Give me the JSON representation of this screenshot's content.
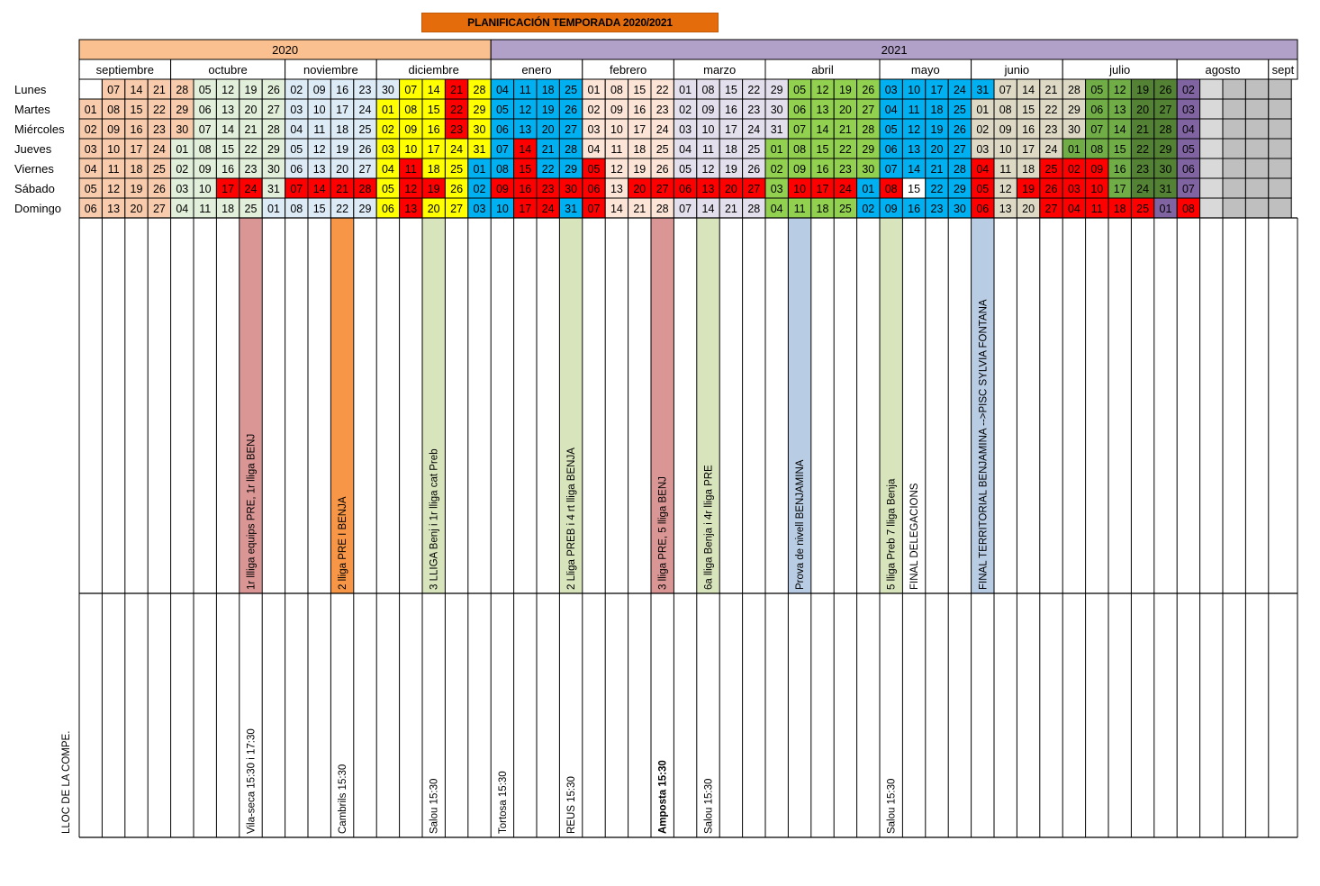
{
  "title": "PLANIFICACIÓN TEMPORADA 2020/2021",
  "years": [
    {
      "label": "2020",
      "from": 0,
      "to": 18,
      "color": "#fac090"
    },
    {
      "label": "2021",
      "from": 18,
      "to": 53,
      "color": "#b1a0c7"
    }
  ],
  "months": [
    {
      "label": "septiembre",
      "from": 0,
      "to": 4
    },
    {
      "label": "octubre",
      "from": 4,
      "to": 9
    },
    {
      "label": "noviembre",
      "from": 9,
      "to": 13
    },
    {
      "label": "diciembre",
      "from": 13,
      "to": 18
    },
    {
      "label": "enero",
      "from": 18,
      "to": 22
    },
    {
      "label": "febrero",
      "from": 22,
      "to": 26
    },
    {
      "label": "marzo",
      "from": 26,
      "to": 30
    },
    {
      "label": "abril",
      "from": 30,
      "to": 35
    },
    {
      "label": "mayo",
      "from": 35,
      "to": 39
    },
    {
      "label": "junio",
      "from": 39,
      "to": 43
    },
    {
      "label": "julio",
      "from": 43,
      "to": 48
    },
    {
      "label": "agosto",
      "from": 48,
      "to": 52
    },
    {
      "label": "sept",
      "from": 52,
      "to": 53
    }
  ],
  "day_labels": [
    "Lunes",
    "Martes",
    "Miércoles",
    "Jueves",
    "Viernes",
    "Sábado",
    "Domingo"
  ],
  "colors": {
    "sep": "#f8cbad",
    "oct": "#e2efda",
    "nov": "#ddebf7",
    "dec": "#ffff00",
    "jan": "#00b0f0",
    "feb": "#fce4d6",
    "mar": "#e4dfec",
    "apr": "#92d050",
    "may": "#00b0f0",
    "jun": "#ddd9c4",
    "jul": "#70ad47",
    "jul2": "#548235",
    "aug": "#8064a2",
    "red": "#ff0000",
    "grey": "#bfbfbf",
    "white": "#ffffff",
    "lightgrey": "#d9d9d9"
  },
  "weeks": [
    {
      "days": [
        "",
        "01",
        "02",
        "03",
        "04",
        "05",
        "06"
      ],
      "colors": [
        "white",
        "sep",
        "sep",
        "sep",
        "sep",
        "sep",
        "sep"
      ]
    },
    {
      "days": [
        "07",
        "08",
        "09",
        "10",
        "11",
        "12",
        "13"
      ],
      "colors": [
        "sep",
        "sep",
        "sep",
        "sep",
        "sep",
        "sep",
        "sep"
      ]
    },
    {
      "days": [
        "14",
        "15",
        "16",
        "17",
        "18",
        "19",
        "20"
      ],
      "colors": [
        "sep",
        "sep",
        "sep",
        "sep",
        "sep",
        "sep",
        "sep"
      ]
    },
    {
      "days": [
        "21",
        "22",
        "23",
        "24",
        "25",
        "26",
        "27"
      ],
      "colors": [
        "sep",
        "sep",
        "sep",
        "sep",
        "sep",
        "sep",
        "sep"
      ]
    },
    {
      "days": [
        "28",
        "29",
        "30",
        "01",
        "02",
        "03",
        "04"
      ],
      "colors": [
        "sep",
        "sep",
        "sep",
        "oct",
        "oct",
        "oct",
        "oct"
      ]
    },
    {
      "days": [
        "05",
        "06",
        "07",
        "08",
        "09",
        "10",
        "11"
      ],
      "colors": [
        "oct",
        "oct",
        "oct",
        "oct",
        "oct",
        "oct",
        "oct"
      ]
    },
    {
      "days": [
        "12",
        "13",
        "14",
        "15",
        "16",
        "17",
        "18"
      ],
      "colors": [
        "oct",
        "oct",
        "oct",
        "oct",
        "oct",
        "red",
        "oct"
      ]
    },
    {
      "days": [
        "19",
        "20",
        "21",
        "22",
        "23",
        "24",
        "25"
      ],
      "colors": [
        "oct",
        "oct",
        "oct",
        "oct",
        "oct",
        "red",
        "oct"
      ]
    },
    {
      "days": [
        "26",
        "27",
        "28",
        "29",
        "30",
        "31",
        "01"
      ],
      "colors": [
        "oct",
        "oct",
        "oct",
        "oct",
        "oct",
        "oct",
        "nov"
      ]
    },
    {
      "days": [
        "02",
        "03",
        "04",
        "05",
        "06",
        "07",
        "08"
      ],
      "colors": [
        "nov",
        "nov",
        "nov",
        "nov",
        "nov",
        "red",
        "nov"
      ]
    },
    {
      "days": [
        "09",
        "10",
        "11",
        "12",
        "13",
        "14",
        "15"
      ],
      "colors": [
        "nov",
        "nov",
        "nov",
        "nov",
        "nov",
        "red",
        "nov"
      ]
    },
    {
      "days": [
        "16",
        "17",
        "18",
        "19",
        "20",
        "21",
        "22"
      ],
      "colors": [
        "nov",
        "nov",
        "nov",
        "nov",
        "nov",
        "red",
        "nov"
      ]
    },
    {
      "days": [
        "23",
        "24",
        "25",
        "26",
        "27",
        "28",
        "29"
      ],
      "colors": [
        "nov",
        "nov",
        "nov",
        "nov",
        "nov",
        "red",
        "nov"
      ]
    },
    {
      "days": [
        "30",
        "01",
        "02",
        "03",
        "04",
        "05",
        "06"
      ],
      "colors": [
        "nov",
        "dec",
        "dec",
        "dec",
        "dec",
        "dec",
        "dec"
      ]
    },
    {
      "days": [
        "07",
        "08",
        "09",
        "10",
        "11",
        "12",
        "13"
      ],
      "colors": [
        "dec",
        "dec",
        "dec",
        "dec",
        "red",
        "red",
        "red"
      ]
    },
    {
      "days": [
        "14",
        "15",
        "16",
        "17",
        "18",
        "19",
        "20"
      ],
      "colors": [
        "dec",
        "dec",
        "dec",
        "dec",
        "dec",
        "red",
        "dec"
      ]
    },
    {
      "days": [
        "21",
        "22",
        "23",
        "24",
        "25",
        "26",
        "27"
      ],
      "colors": [
        "red",
        "red",
        "red",
        "dec",
        "dec",
        "dec",
        "dec"
      ]
    },
    {
      "days": [
        "28",
        "29",
        "30",
        "31",
        "01",
        "02",
        "03"
      ],
      "colors": [
        "dec",
        "dec",
        "dec",
        "dec",
        "jan",
        "jan",
        "jan"
      ]
    },
    {
      "days": [
        "04",
        "05",
        "06",
        "07",
        "08",
        "09",
        "10"
      ],
      "colors": [
        "jan",
        "jan",
        "jan",
        "jan",
        "jan",
        "red",
        "jan"
      ]
    },
    {
      "days": [
        "11",
        "12",
        "13",
        "14",
        "15",
        "16",
        "17"
      ],
      "colors": [
        "jan",
        "jan",
        "jan",
        "red",
        "red",
        "red",
        "red"
      ]
    },
    {
      "days": [
        "18",
        "19",
        "20",
        "21",
        "22",
        "23",
        "24"
      ],
      "colors": [
        "jan",
        "jan",
        "jan",
        "jan",
        "jan",
        "red",
        "red"
      ]
    },
    {
      "days": [
        "25",
        "26",
        "27",
        "28",
        "29",
        "30",
        "31"
      ],
      "colors": [
        "jan",
        "jan",
        "jan",
        "jan",
        "jan",
        "red",
        "jan"
      ]
    },
    {
      "days": [
        "01",
        "02",
        "03",
        "04",
        "05",
        "06",
        "07"
      ],
      "colors": [
        "feb",
        "feb",
        "feb",
        "feb",
        "red",
        "red",
        "red"
      ]
    },
    {
      "days": [
        "08",
        "09",
        "10",
        "11",
        "12",
        "13",
        "14"
      ],
      "colors": [
        "feb",
        "feb",
        "feb",
        "feb",
        "feb",
        "feb",
        "feb"
      ]
    },
    {
      "days": [
        "15",
        "16",
        "17",
        "18",
        "19",
        "20",
        "21"
      ],
      "colors": [
        "feb",
        "feb",
        "feb",
        "feb",
        "feb",
        "red",
        "feb"
      ]
    },
    {
      "days": [
        "22",
        "23",
        "24",
        "25",
        "26",
        "27",
        "28"
      ],
      "colors": [
        "feb",
        "feb",
        "feb",
        "feb",
        "feb",
        "red",
        "feb"
      ]
    },
    {
      "days": [
        "01",
        "02",
        "03",
        "04",
        "05",
        "06",
        "07"
      ],
      "colors": [
        "mar",
        "mar",
        "mar",
        "mar",
        "mar",
        "red",
        "mar"
      ]
    },
    {
      "days": [
        "08",
        "09",
        "10",
        "11",
        "12",
        "13",
        "14"
      ],
      "colors": [
        "mar",
        "mar",
        "mar",
        "mar",
        "mar",
        "red",
        "mar"
      ]
    },
    {
      "days": [
        "15",
        "16",
        "17",
        "18",
        "19",
        "20",
        "21"
      ],
      "colors": [
        "mar",
        "mar",
        "mar",
        "mar",
        "mar",
        "red",
        "mar"
      ]
    },
    {
      "days": [
        "22",
        "23",
        "24",
        "25",
        "26",
        "27",
        "28"
      ],
      "colors": [
        "mar",
        "mar",
        "mar",
        "mar",
        "mar",
        "red",
        "mar"
      ]
    },
    {
      "days": [
        "29",
        "30",
        "31",
        "01",
        "02",
        "03",
        "04"
      ],
      "colors": [
        "mar",
        "mar",
        "mar",
        "apr",
        "apr",
        "apr",
        "apr"
      ]
    },
    {
      "days": [
        "05",
        "06",
        "07",
        "08",
        "09",
        "10",
        "11"
      ],
      "colors": [
        "apr",
        "apr",
        "apr",
        "apr",
        "apr",
        "red",
        "apr"
      ]
    },
    {
      "days": [
        "12",
        "13",
        "14",
        "15",
        "16",
        "17",
        "18"
      ],
      "colors": [
        "apr",
        "apr",
        "apr",
        "apr",
        "apr",
        "red",
        "apr"
      ]
    },
    {
      "days": [
        "19",
        "20",
        "21",
        "22",
        "23",
        "24",
        "25"
      ],
      "colors": [
        "apr",
        "apr",
        "apr",
        "apr",
        "apr",
        "red",
        "apr"
      ]
    },
    {
      "days": [
        "26",
        "27",
        "28",
        "29",
        "30",
        "01",
        "02"
      ],
      "colors": [
        "apr",
        "apr",
        "apr",
        "apr",
        "apr",
        "may",
        "may"
      ]
    },
    {
      "days": [
        "03",
        "04",
        "05",
        "06",
        "07",
        "08",
        "09"
      ],
      "colors": [
        "may",
        "may",
        "may",
        "may",
        "may",
        "red",
        "may"
      ]
    },
    {
      "days": [
        "10",
        "11",
        "12",
        "13",
        "14",
        "15",
        "16"
      ],
      "colors": [
        "may",
        "may",
        "may",
        "may",
        "may",
        "white",
        "may"
      ]
    },
    {
      "days": [
        "17",
        "18",
        "19",
        "20",
        "21",
        "22",
        "23"
      ],
      "colors": [
        "may",
        "may",
        "may",
        "may",
        "may",
        "may",
        "may"
      ]
    },
    {
      "days": [
        "24",
        "25",
        "26",
        "27",
        "28",
        "29",
        "30"
      ],
      "colors": [
        "may",
        "may",
        "may",
        "may",
        "may",
        "may",
        "may"
      ]
    },
    {
      "days": [
        "31",
        "01",
        "02",
        "03",
        "04",
        "05",
        "06"
      ],
      "colors": [
        "may",
        "jun",
        "jun",
        "jun",
        "red",
        "red",
        "red"
      ]
    },
    {
      "days": [
        "07",
        "08",
        "09",
        "10",
        "11",
        "12",
        "13"
      ],
      "colors": [
        "jun",
        "jun",
        "jun",
        "jun",
        "jun",
        "jun",
        "jun"
      ]
    },
    {
      "days": [
        "14",
        "15",
        "16",
        "17",
        "18",
        "19",
        "20"
      ],
      "colors": [
        "jun",
        "jun",
        "jun",
        "jun",
        "jun",
        "red",
        "jun"
      ]
    },
    {
      "days": [
        "21",
        "22",
        "23",
        "24",
        "25",
        "26",
        "27"
      ],
      "colors": [
        "jun",
        "jun",
        "jun",
        "jun",
        "red",
        "red",
        "red"
      ]
    },
    {
      "days": [
        "28",
        "29",
        "30",
        "01",
        "02",
        "03",
        "04"
      ],
      "colors": [
        "jun",
        "jun",
        "jun",
        "jul",
        "red",
        "red",
        "red"
      ]
    },
    {
      "days": [
        "05",
        "06",
        "07",
        "08",
        "09",
        "10",
        "11"
      ],
      "colors": [
        "jul",
        "jul",
        "jul",
        "jul",
        "red",
        "red",
        "red"
      ]
    },
    {
      "days": [
        "12",
        "13",
        "14",
        "15",
        "16",
        "17",
        "18"
      ],
      "colors": [
        "jul",
        "jul",
        "jul",
        "jul",
        "jul",
        "jul",
        "red"
      ]
    },
    {
      "days": [
        "19",
        "20",
        "21",
        "22",
        "23",
        "24",
        "25"
      ],
      "colors": [
        "jul2",
        "jul2",
        "jul2",
        "jul2",
        "jul2",
        "jul2",
        "red"
      ]
    },
    {
      "days": [
        "26",
        "27",
        "28",
        "29",
        "30",
        "31",
        "01"
      ],
      "colors": [
        "jul2",
        "jul2",
        "jul2",
        "jul2",
        "jul2",
        "jul2",
        "aug"
      ]
    },
    {
      "days": [
        "02",
        "03",
        "04",
        "05",
        "06",
        "07",
        "08"
      ],
      "colors": [
        "aug",
        "aug",
        "aug",
        "aug",
        "aug",
        "aug",
        "red"
      ]
    },
    {
      "days": [
        "",
        "",
        "",
        "",
        "",
        "",
        ""
      ],
      "colors": [
        "lightgrey",
        "lightgrey",
        "lightgrey",
        "lightgrey",
        "lightgrey",
        "lightgrey",
        "lightgrey"
      ]
    },
    {
      "days": [
        "",
        "",
        "",
        "",
        "",
        "",
        ""
      ],
      "colors": [
        "grey",
        "grey",
        "grey",
        "grey",
        "grey",
        "grey",
        "grey"
      ]
    },
    {
      "days": [
        "",
        "",
        "",
        "",
        "",
        "",
        ""
      ],
      "colors": [
        "grey",
        "grey",
        "grey",
        "grey",
        "grey",
        "grey",
        "grey"
      ]
    },
    {
      "days": [
        "",
        "",
        "",
        "",
        "",
        "",
        ""
      ],
      "colors": [
        "grey",
        "grey",
        "grey",
        "grey",
        "grey",
        "grey",
        "grey"
      ]
    }
  ],
  "events": [
    {
      "col": 7,
      "text": "1r llliga equips PRE, 1r lliga BENJ",
      "color": "#da9694"
    },
    {
      "col": 11,
      "text": "2 lliga PRE I BENJA",
      "color": "#f79646"
    },
    {
      "col": 15,
      "text": "3 LLIGA Benj i 1r lliga cat Preb",
      "color": "#d8e4bc"
    },
    {
      "col": 21,
      "text": "2 Lliga PREB i 4 rt lliga BENJA",
      "color": "#d8e4bc"
    },
    {
      "col": 25,
      "text": "3 lliga PRE, 5 lliga BENJ",
      "color": "#da9694"
    },
    {
      "col": 27,
      "text": "6a lliga Benja i 4r lliga PRE",
      "color": "#d8e4bc"
    },
    {
      "col": 31,
      "text": "Prova de nivell BENJAMINA",
      "color": "#b8cce4"
    },
    {
      "col": 35,
      "text": "5 lliga Preb  7 lliga Benja",
      "color": "#d8e4bc"
    },
    {
      "col": 36,
      "text": "FINAL DELEGACIONS",
      "color": "#ffffff"
    },
    {
      "col": 39,
      "text": "FINAL TERRITORIAL BENJAMINA -->PISC SYLVIA FONTANA",
      "color": "#b8cce4"
    }
  ],
  "lloc_label": "LLOC DE LA COMPE.",
  "locations": [
    {
      "col": 7,
      "text": "Vila-seca 15:30 i 17:30"
    },
    {
      "col": 11,
      "text": "Cambrils 15:30"
    },
    {
      "col": 15,
      "text": "Salou 15:30"
    },
    {
      "col": 18,
      "text": "Tortosa 15:30"
    },
    {
      "col": 21,
      "text": "REUS 15:30"
    },
    {
      "col": 25,
      "text": "Amposta 15:30",
      "bold": true
    },
    {
      "col": 27,
      "text": "Salou 15:30"
    },
    {
      "col": 35,
      "text": "Salou 15:30"
    }
  ]
}
